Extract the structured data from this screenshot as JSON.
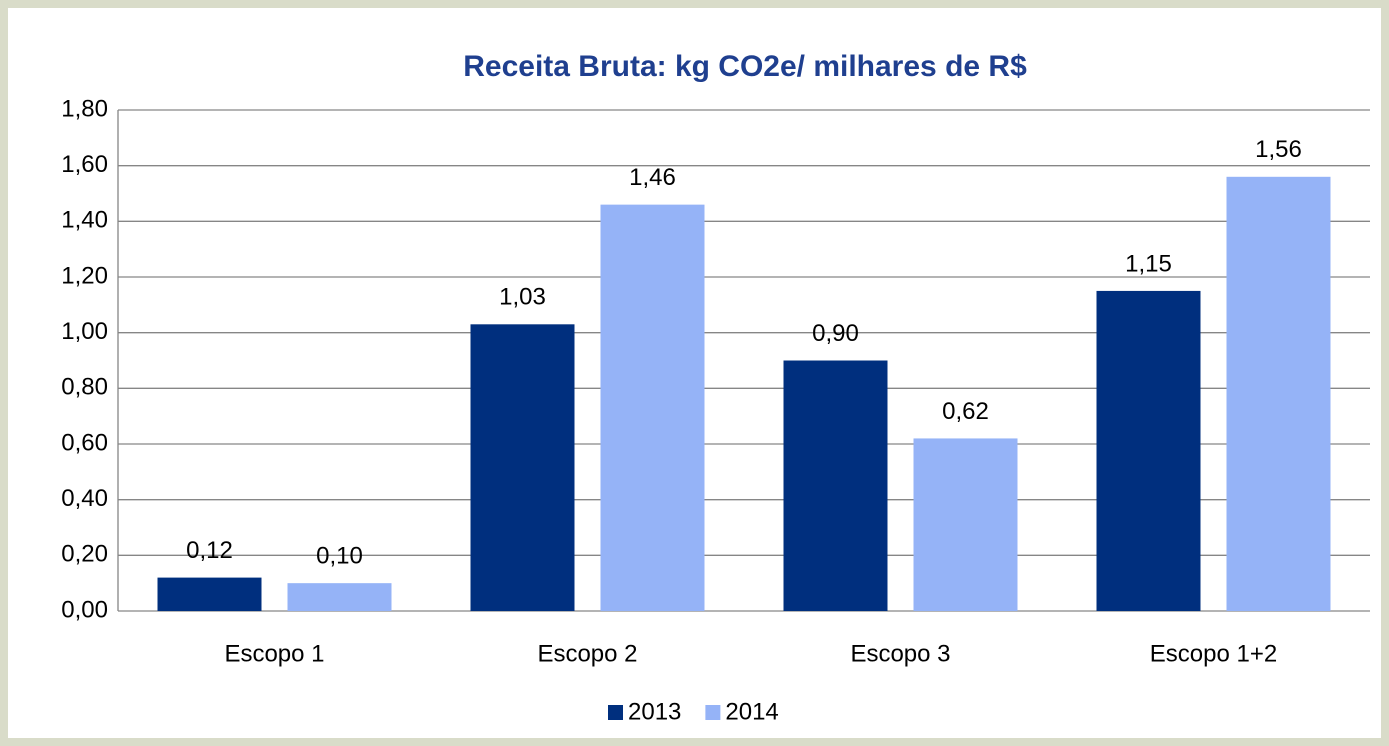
{
  "chart_data": {
    "type": "bar",
    "title": "Receita Bruta: kg CO2e/ milhares de R$",
    "categories": [
      "Escopo 1",
      "Escopo 2",
      "Escopo 3",
      "Escopo 1+2"
    ],
    "series": [
      {
        "name": "2013",
        "color": "#002f7e",
        "values": [
          0.12,
          1.03,
          0.9,
          1.15
        ],
        "value_labels": [
          "0,12",
          "1,03",
          "0,90",
          "1,15"
        ]
      },
      {
        "name": "2014",
        "color": "#95b3f7",
        "values": [
          0.1,
          1.46,
          0.62,
          1.56
        ],
        "value_labels": [
          "0,10",
          "1,46",
          "0,62",
          "1,56"
        ]
      }
    ],
    "ylim": [
      0,
      1.8
    ],
    "yticks": [
      {
        "value": 0,
        "label": "0,00"
      },
      {
        "value": 0.2,
        "label": "0,20"
      },
      {
        "value": 0.4,
        "label": "0,40"
      },
      {
        "value": 0.6,
        "label": "0,60"
      },
      {
        "value": 0.8,
        "label": "0,80"
      },
      {
        "value": 1.0,
        "label": "1,00"
      },
      {
        "value": 1.2,
        "label": "1,20"
      },
      {
        "value": 1.4,
        "label": "1,40"
      },
      {
        "value": 1.6,
        "label": "1,60"
      },
      {
        "value": 1.8,
        "label": "1,80"
      }
    ],
    "grid": true,
    "legend": "bottom"
  }
}
